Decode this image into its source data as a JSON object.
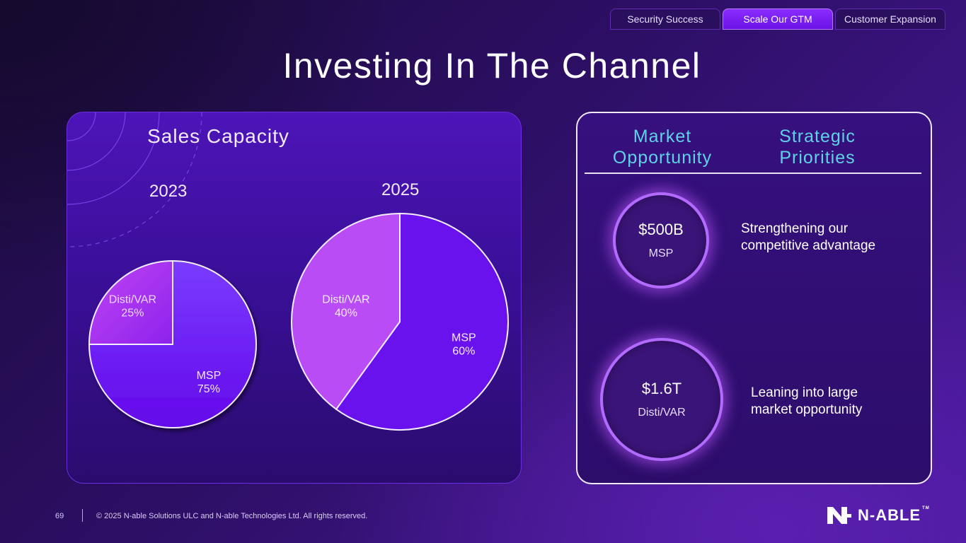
{
  "tabs": [
    "Security Success",
    "Scale Our GTM",
    "Customer Expansion"
  ],
  "title": "Investing In The Channel",
  "sales": {
    "title": "Sales Capacity"
  },
  "chart_data": [
    {
      "type": "pie",
      "title": "2023",
      "slices": [
        {
          "label": "MSP",
          "value": 75,
          "display": "75%",
          "color": "#6a12ee"
        },
        {
          "label": "Disti/VAR",
          "value": 25,
          "display": "25%",
          "color": "#b03ef0"
        }
      ]
    },
    {
      "type": "pie",
      "title": "2025",
      "slices": [
        {
          "label": "MSP",
          "value": 60,
          "display": "60%",
          "color": "#6a12ee"
        },
        {
          "label": "Disti/VAR",
          "value": 40,
          "display": "40%",
          "color": "#b94cf5"
        }
      ]
    }
  ],
  "market": {
    "head_left": [
      "Market",
      "Opportunity"
    ],
    "head_right": [
      "Strategic",
      "Priorities"
    ],
    "items": [
      {
        "value": "$500B",
        "label": "MSP",
        "priority": [
          "Strengthening our",
          "competitive advantage"
        ]
      },
      {
        "value": "$1.6T",
        "label": "Disti/VAR",
        "priority": [
          "Leaning into large",
          "market opportunity"
        ]
      }
    ]
  },
  "footer": {
    "page": "69",
    "copyright": "© 2025 N-able Solutions ULC and N-able Technologies Ltd. All rights reserved.",
    "logo": "N-ABLE",
    "tm": "TM"
  },
  "colors": {
    "accent": "#5fd2e6",
    "msp": "#6a12ee",
    "disti": "#b03ef0"
  }
}
